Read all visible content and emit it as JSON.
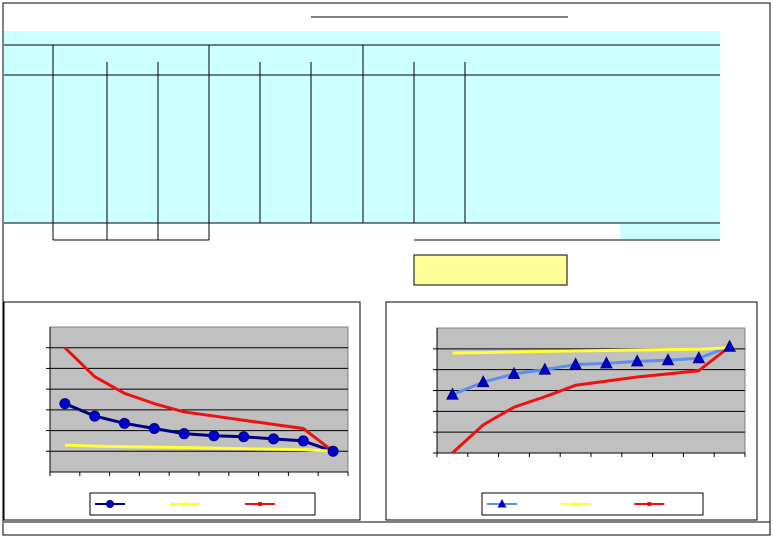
{
  "chart_data": [
    {
      "type": "line",
      "categories": [
        null,
        null,
        null,
        null,
        null,
        null,
        null,
        null,
        null,
        null
      ],
      "series": [
        {
          "color": "#000080",
          "marker": "circle",
          "marker_color": "#0000cc",
          "values": [
            2.3,
            1.7,
            1.35,
            1.1,
            0.85,
            0.75,
            0.7,
            0.6,
            0.5,
            0
          ]
        },
        {
          "color": "#ffff33",
          "marker": "none",
          "values": [
            0.3,
            0.25,
            0.22,
            0.2,
            0.18,
            0.15,
            0.12,
            0.1,
            0.08,
            0
          ]
        },
        {
          "color": "#ee1111",
          "marker": "none",
          "values": [
            5,
            3.6,
            2.8,
            2.3,
            1.9,
            1.7,
            1.5,
            1.3,
            1.1,
            0
          ]
        }
      ],
      "ylim": [
        -1,
        6
      ],
      "yticks": [
        0,
        1,
        2,
        3,
        4,
        5
      ],
      "grid": true
    },
    {
      "type": "line",
      "categories": [
        null,
        null,
        null,
        null,
        null,
        null,
        null,
        null,
        null,
        null
      ],
      "series": [
        {
          "color": "#5b8ff0",
          "marker": "triangle",
          "marker_color": "#0000cc",
          "values": [
            2.8,
            3.4,
            3.8,
            4.0,
            4.25,
            4.3,
            4.4,
            4.45,
            4.55,
            5.1
          ]
        },
        {
          "color": "#ffff33",
          "marker": "none",
          "values": [
            4.8,
            4.82,
            4.85,
            4.88,
            4.9,
            4.92,
            4.94,
            4.96,
            4.98,
            5.05
          ]
        },
        {
          "color": "#ee1111",
          "marker": "none",
          "values": [
            0,
            1.35,
            2.2,
            2.7,
            3.25,
            3.45,
            3.65,
            3.8,
            3.95,
            5.1
          ]
        }
      ],
      "ylim": [
        0,
        6
      ],
      "yticks": [
        0,
        1,
        2,
        3,
        4,
        5
      ],
      "grid": true
    }
  ]
}
